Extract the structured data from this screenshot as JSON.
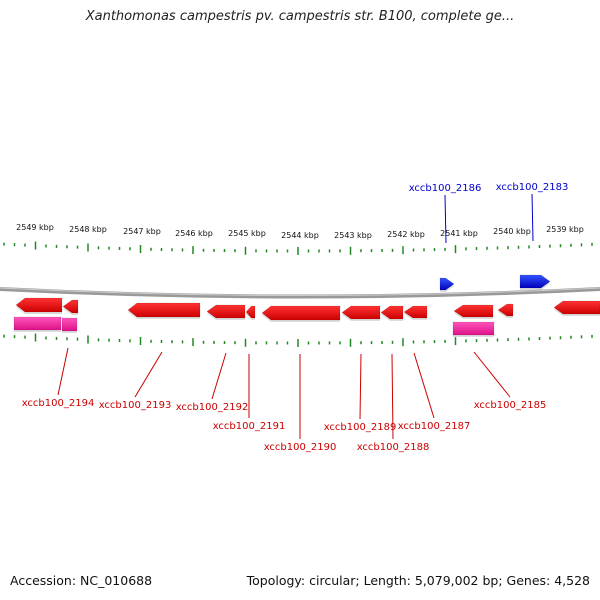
{
  "title": "Xanthomonas campestris pv. campestris str. B100, complete ge...",
  "footer": {
    "accession": "Accession: NC_010688",
    "summary": "Topology: circular; Length: 5,079,002 bp; Genes: 4,528"
  },
  "colors": {
    "forward_gene": "#0000dd",
    "reverse_gene": "#ee1111",
    "rna_feature": "#ee2299",
    "ticks": "#228822",
    "backbone": "#888888"
  },
  "scale": {
    "unit": "kbp",
    "labels": [
      "2549 kbp",
      "2548 kbp",
      "2547 kbp",
      "2546 kbp",
      "2545 kbp",
      "2544 kbp",
      "2543 kbp",
      "2542 kbp",
      "2541 kbp",
      "2540 kbp",
      "2539 kbp"
    ]
  },
  "genes": [
    {
      "label": "xccb100_2194",
      "strand": "-"
    },
    {
      "label": "xccb100_2193",
      "strand": "-"
    },
    {
      "label": "xccb100_2192",
      "strand": "-"
    },
    {
      "label": "xccb100_2191",
      "strand": "-"
    },
    {
      "label": "xccb100_2190",
      "strand": "-"
    },
    {
      "label": "xccb100_2189",
      "strand": "-"
    },
    {
      "label": "xccb100_2188",
      "strand": "-"
    },
    {
      "label": "xccb100_2187",
      "strand": "-"
    },
    {
      "label": "xccb100_2186",
      "strand": "+"
    },
    {
      "label": "xccb100_2185",
      "strand": "-"
    },
    {
      "label": "xccb100_2183",
      "strand": "+"
    }
  ]
}
